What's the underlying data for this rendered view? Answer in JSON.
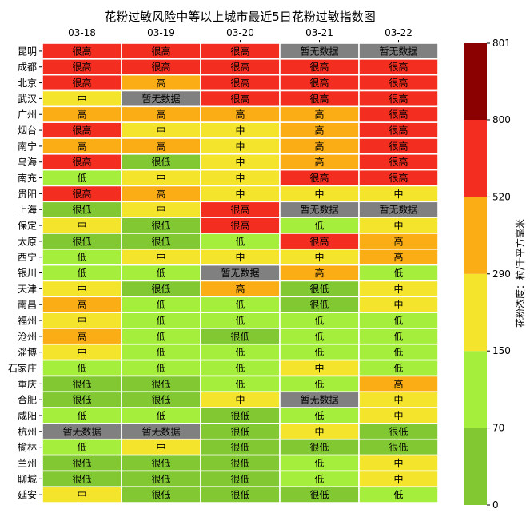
{
  "chart_data": {
    "type": "heatmap",
    "title": "花粉过敏风险中等以上城市最近5日花粉过敏指数图",
    "x_categories": [
      "03-18",
      "03-19",
      "03-20",
      "03-21",
      "03-22"
    ],
    "y_categories": [
      "昆明",
      "成都",
      "北京",
      "武汉",
      "广州",
      "烟台",
      "南宁",
      "乌海",
      "南充",
      "贵阳",
      "上海",
      "保定",
      "太原",
      "西宁",
      "银川",
      "天津",
      "南昌",
      "福州",
      "沧州",
      "淄博",
      "石家庄",
      "重庆",
      "合肥",
      "咸阳",
      "杭州",
      "榆林",
      "兰州",
      "聊城",
      "延安"
    ],
    "levels": {
      "很低": {
        "color": "#82c832"
      },
      "低": {
        "color": "#a6ee3c"
      },
      "中": {
        "color": "#f5e42c"
      },
      "高": {
        "color": "#fbad16"
      },
      "很高": {
        "color": "#f32e21"
      },
      "暂无数据": {
        "color": "#808080"
      }
    },
    "cells": [
      [
        "很高",
        "很高",
        "很高",
        "暂无数据",
        "暂无数据"
      ],
      [
        "很高",
        "很高",
        "很高",
        "很高",
        "很高"
      ],
      [
        "很高",
        "高",
        "很高",
        "很高",
        "很高"
      ],
      [
        "中",
        "暂无数据",
        "很高",
        "很高",
        "很高"
      ],
      [
        "高",
        "高",
        "高",
        "高",
        "很高"
      ],
      [
        "很高",
        "中",
        "中",
        "高",
        "很高"
      ],
      [
        "高",
        "高",
        "中",
        "高",
        "很高"
      ],
      [
        "很高",
        "很低",
        "中",
        "高",
        "很高"
      ],
      [
        "低",
        "中",
        "中",
        "很高",
        "很高"
      ],
      [
        "很高",
        "高",
        "中",
        "中",
        "中"
      ],
      [
        "很低",
        "中",
        "很高",
        "暂无数据",
        "暂无数据"
      ],
      [
        "中",
        "很低",
        "很高",
        "低",
        "中"
      ],
      [
        "很低",
        "很低",
        "低",
        "很高",
        "高"
      ],
      [
        "低",
        "中",
        "中",
        "中",
        "高"
      ],
      [
        "低",
        "低",
        "暂无数据",
        "高",
        "低"
      ],
      [
        "中",
        "很低",
        "高",
        "很低",
        "中"
      ],
      [
        "高",
        "低",
        "低",
        "很低",
        "中"
      ],
      [
        "中",
        "低",
        "低",
        "低",
        "低"
      ],
      [
        "高",
        "低",
        "很低",
        "低",
        "低"
      ],
      [
        "中",
        "低",
        "低",
        "低",
        "低"
      ],
      [
        "低",
        "低",
        "低",
        "中",
        "低"
      ],
      [
        "很低",
        "很低",
        "低",
        "低",
        "高"
      ],
      [
        "很低",
        "很低",
        "中",
        "暂无数据",
        "中"
      ],
      [
        "低",
        "低",
        "很低",
        "低",
        "中"
      ],
      [
        "暂无数据",
        "暂无数据",
        "很低",
        "中",
        "很低"
      ],
      [
        "低",
        "中",
        "很低",
        "很低",
        "很低"
      ],
      [
        "很低",
        "很低",
        "很低",
        "低",
        "中"
      ],
      [
        "很低",
        "很低",
        "很低",
        "低",
        "中"
      ],
      [
        "中",
        "很低",
        "很低",
        "很低",
        "低"
      ]
    ],
    "colorbar": {
      "label": "花粉浓度：粒/千平方毫米",
      "bands": [
        {
          "from": 0,
          "to": 70,
          "color": "#82c832"
        },
        {
          "from": 70,
          "to": 150,
          "color": "#a6ee3c"
        },
        {
          "from": 150,
          "to": 290,
          "color": "#f5e42c"
        },
        {
          "from": 290,
          "to": 520,
          "color": "#fbad16"
        },
        {
          "from": 520,
          "to": 800,
          "color": "#f32e21"
        },
        {
          "from": 800,
          "to": 801,
          "color": "#8b0000"
        }
      ],
      "ticks": [
        "0",
        "70",
        "150",
        "290",
        "520",
        "800",
        "801"
      ]
    }
  }
}
